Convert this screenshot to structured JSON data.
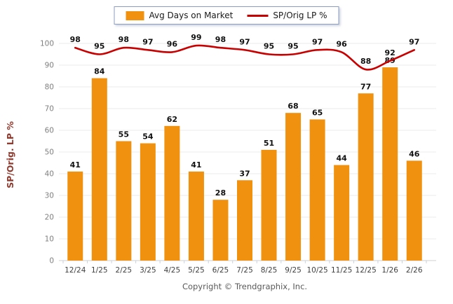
{
  "legend": {
    "items": [
      {
        "label": "Avg Days on Market",
        "swatch": "bar"
      },
      {
        "label": "SP/Orig LP %",
        "swatch": "line"
      }
    ]
  },
  "chart_data": {
    "type": "bar",
    "categories": [
      "12/24",
      "1/25",
      "2/25",
      "3/25",
      "4/25",
      "5/25",
      "6/25",
      "7/25",
      "8/25",
      "9/25",
      "10/25",
      "11/25",
      "12/25",
      "1/26",
      "2/26"
    ],
    "series": [
      {
        "name": "Avg Days on Market",
        "type": "bar",
        "color": "#F0910F",
        "values": [
          41,
          84,
          55,
          54,
          62,
          41,
          28,
          37,
          51,
          68,
          65,
          44,
          77,
          89,
          46
        ]
      },
      {
        "name": "SP/Orig LP %",
        "type": "line",
        "color": "#C80000",
        "values": [
          98,
          95,
          98,
          97,
          96,
          99,
          98,
          97,
          95,
          95,
          97,
          96,
          88,
          92,
          97
        ]
      }
    ],
    "title": "",
    "xlabel": "",
    "ylabel": "SP/Orig. LP %",
    "ylim": [
      0,
      100
    ],
    "yticks": [
      0,
      10,
      20,
      30,
      40,
      50,
      60,
      70,
      80,
      90,
      100
    ],
    "grid": true,
    "legend_position": "top-center",
    "value_labels": true
  },
  "footer": {
    "copyright": "Copyright © Trendgraphix, Inc."
  }
}
